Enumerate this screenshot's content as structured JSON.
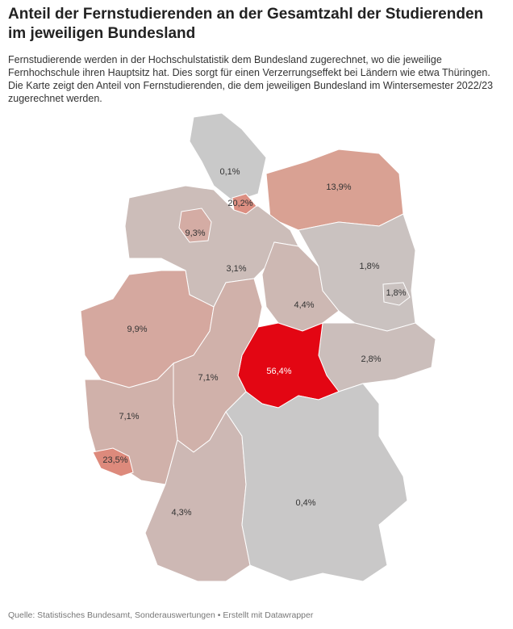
{
  "chart_data": {
    "type": "choropleth",
    "title": "Anteil der Fernstudierenden an der Gesamtzahl der Studierenden im jeweiligen Bundesland",
    "subtitle": "Fernstudierende werden in der Hochschulstatistik dem Bundesland zugerechnet, wo die jeweilige Fernhochschule ihren Hauptsitz hat. Dies sorgt für einen Verzerrungseffekt bei Ländern wie etwa Thüringen. Die Karte zeigt den Anteil von Fernstudierenden, die dem jeweiligen Bundesland im Wintersemester 2022/23 zugerechnet werden.",
    "values": [
      0.1,
      20.2,
      13.9,
      9.3,
      3.1,
      4.4,
      1.8,
      1.8,
      2.8,
      56.4,
      9.9,
      7.1,
      7.1,
      23.5,
      4.3,
      0.4
    ],
    "value_labels": [
      "0,1%",
      "20,2%",
      "13,9%",
      "9,3%",
      "3,1%",
      "4,4%",
      "1,8%",
      "1,8%",
      "2,8%",
      "56,4%",
      "9,9%",
      "7,1%",
      "7,1%",
      "23,5%",
      "4,3%",
      "0,4%"
    ],
    "colors": [
      "#c9c9c9",
      "#dc8f82",
      "#d9a193",
      "#d4aca4",
      "#ccbdb9",
      "#cdb8b3",
      "#cac2c0",
      "#cac2c0",
      "#cbbebb",
      "#e30613",
      "#d5a89f",
      "#d0b1aa",
      "#d0b1aa",
      "#dd8a7c",
      "#cdb8b4",
      "#c9c8c8"
    ],
    "source": "Quelle: Statistisches Bundesamt, Sonderauswertungen • Erstellt mit Datawrapper"
  }
}
